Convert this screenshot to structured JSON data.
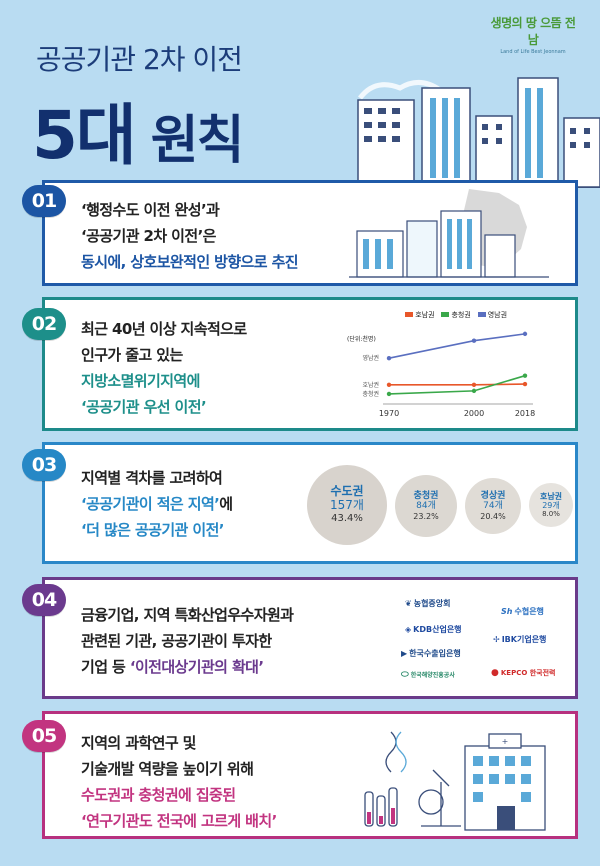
{
  "header": {
    "logo_text": "생명의 땅 으뜸 전남",
    "logo_sub": "Land of Life Best Jeonnam",
    "subtitle": "공공기관 2차 이전",
    "title_num": "5대",
    "title_word": "원칙"
  },
  "principles": [
    {
      "num": "01",
      "lines": [
        "‘행정수도 이전 완성’과",
        "‘공공기관 2차 이전’은"
      ],
      "highlight": "동시에, 상호보완적인 방향으로 추진",
      "color": "#1c55a4"
    },
    {
      "num": "02",
      "lines": [
        "최근 40년 이상 지속적으로",
        "인구가 줄고 있는"
      ],
      "highlight1": "지방소멸위기지역에",
      "highlight2": "‘공공기관 우선 이전’",
      "color": "#1d8f8a"
    },
    {
      "num": "03",
      "lines": [
        "지역별 격차를 고려하여"
      ],
      "highlight1": "‘공공기관이 적은 지역’",
      "suffix1": "에",
      "highlight2": "‘더 많은 공공기관 이전’",
      "color": "#2688c6"
    },
    {
      "num": "04",
      "lines": [
        "금융기업, 지역 특화산업우수자원과",
        "관련된 기관, 공공기관이 투자한"
      ],
      "prefix3": "기업 등 ",
      "highlight": "‘이전대상기관의 확대’",
      "color": "#6b3a8e"
    },
    {
      "num": "05",
      "lines": [
        "지역의 과학연구 및",
        "기술개발 역량을 높이기 위해"
      ],
      "highlight1": "수도권과 충청권에 집중된",
      "highlight2": "‘연구기관도 전국에 고르게 배치’",
      "color": "#c23480"
    }
  ],
  "chart_data": {
    "type": "line",
    "unit_label": "(단위:천명)",
    "x": [
      1970,
      2000,
      2018
    ],
    "x_tick_labels": [
      "1970",
      "2000",
      "2018"
    ],
    "series": [
      {
        "name": "호남권",
        "color": "#e8572a",
        "values": [
          2,
          2,
          2.1
        ]
      },
      {
        "name": "충청권",
        "color": "#3aa84a",
        "values": [
          0.8,
          1.2,
          3.2
        ]
      },
      {
        "name": "영남권",
        "color": "#5a6fc0",
        "values": [
          5.5,
          7.8,
          8.7
        ]
      }
    ],
    "row_labels": [
      "영남권",
      "호남권",
      "충청권"
    ],
    "ylim": [
      0,
      10
    ],
    "legend_position": "top"
  },
  "regions": [
    {
      "name": "수도권",
      "count": "157개",
      "pct": "43.4%",
      "color": "#d8d3cd"
    },
    {
      "name": "충청권",
      "count": "84개",
      "pct": "23.2%",
      "color": "#dcd8d2"
    },
    {
      "name": "경상권",
      "count": "74개",
      "pct": "20.4%",
      "color": "#e0dcd6"
    },
    {
      "name": "호남권",
      "count": "29개",
      "pct": "8.0%",
      "color": "#e6e3de"
    }
  ],
  "banks": [
    {
      "name": "농협중앙회",
      "color": "#1f4a8a"
    },
    {
      "name": "수협은행",
      "color": "#2a6fc0"
    },
    {
      "name": "KDB산업은행",
      "color": "#1f4aa0"
    },
    {
      "name": "IBK기업은행",
      "color": "#1f4aa0"
    },
    {
      "name": "한국수출입은행",
      "color": "#1f4a8a"
    },
    {
      "name": "한국해양진흥공사",
      "color": "#2a8a6a"
    },
    {
      "name": "KEPCO 한국전력",
      "color": "#d02a2a"
    }
  ]
}
